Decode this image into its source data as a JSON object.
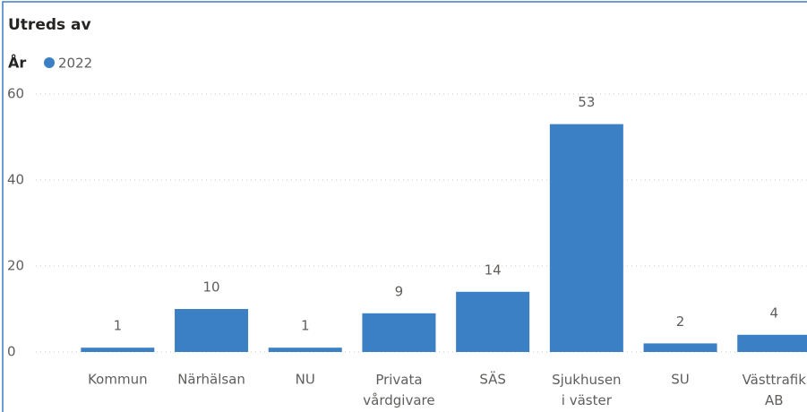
{
  "chart_data": {
    "type": "bar",
    "title": "Utreds av",
    "legend_title": "År",
    "categories": [
      "Kommun",
      "Närhälsan",
      "NU",
      "Privata vårdgivare",
      "SÄS",
      "Sjukhusen i väster",
      "SU",
      "Västtrafik AB"
    ],
    "series": [
      {
        "name": "2022",
        "color": "#3b7fc4",
        "values": [
          1,
          10,
          1,
          9,
          14,
          53,
          2,
          4
        ]
      }
    ],
    "ylim": [
      0,
      60
    ],
    "yticks": [
      0,
      20,
      40,
      60
    ],
    "grid": true
  }
}
